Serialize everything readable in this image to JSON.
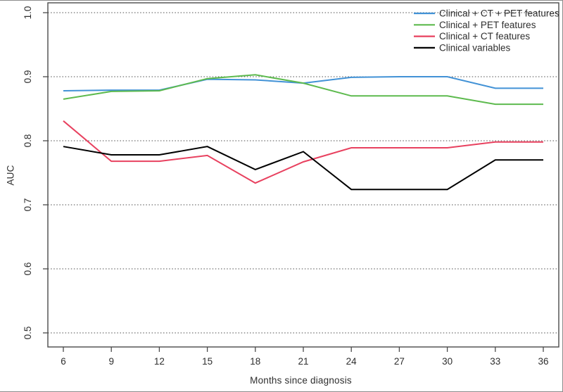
{
  "figure": {
    "background": "#ffffff",
    "text_color": "#2e2e2e",
    "axis_color": "#4a4a4a",
    "grid_color": "#4d4d4d"
  },
  "chart_data": {
    "type": "line",
    "title": "",
    "xlabel": "Months since diagnosis",
    "ylabel": "AUC",
    "xlim": [
      6,
      36
    ],
    "ylim": [
      0.5,
      1.0
    ],
    "xticks": [
      6,
      9,
      12,
      15,
      18,
      21,
      24,
      27,
      30,
      33,
      36
    ],
    "yticks": [
      "0.5",
      "0.6",
      "0.7",
      "0.8",
      "0.9",
      "1.0"
    ],
    "grid": "horizontal-dotted",
    "legend_position": "top-right",
    "x": [
      6,
      9,
      12,
      15,
      18,
      21,
      24,
      27,
      30,
      33,
      36
    ],
    "series": [
      {
        "name": "Clinical + CT + PET features",
        "color": "#4292d6",
        "values": [
          0.878,
          0.879,
          0.879,
          0.896,
          0.895,
          0.89,
          0.899,
          0.9,
          0.9,
          0.882,
          0.882
        ]
      },
      {
        "name": "Clinical + PET features",
        "color": "#5dba4e",
        "values": [
          0.865,
          0.877,
          0.878,
          0.897,
          0.903,
          0.89,
          0.87,
          0.87,
          0.87,
          0.857,
          0.857
        ]
      },
      {
        "name": "Clinical + CT features",
        "color": "#e8415f",
        "values": [
          0.831,
          0.768,
          0.768,
          0.777,
          0.734,
          0.767,
          0.789,
          0.789,
          0.789,
          0.798,
          0.798
        ]
      },
      {
        "name": "Clinical variables",
        "color": "#000000",
        "values": [
          0.791,
          0.778,
          0.778,
          0.791,
          0.755,
          0.783,
          0.724,
          0.724,
          0.724,
          0.77,
          0.77
        ]
      }
    ]
  }
}
